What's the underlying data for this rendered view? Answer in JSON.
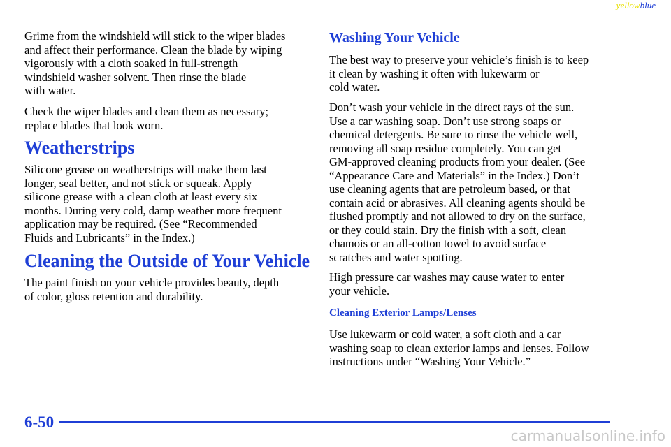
{
  "header": {
    "yellow": "yellow",
    "blue": "blue"
  },
  "left": [
    {
      "kind": "p",
      "lines": [
        "Grime from the windshield will stick to the wiper blades",
        "and affect their performance. Clean the blade by wiping",
        "vigorously with a cloth soaked in full-strength",
        "windshield washer solvent. Then rinse the blade",
        "with water."
      ]
    },
    {
      "kind": "p",
      "lines": [
        "Check the wiper blades and clean them as necessary;",
        "replace blades that look worn."
      ]
    },
    {
      "kind": "h1",
      "lines": [
        "Weatherstrips"
      ]
    },
    {
      "kind": "p",
      "lines": [
        "Silicone grease on weatherstrips will make them last",
        "longer, seal better, and not stick or squeak. Apply",
        "silicone grease with a clean cloth at least every six",
        "months. During very cold, damp weather more frequent",
        "application may be required. (See “Recommended",
        "Fluids and Lubricants” in the Index.)"
      ]
    },
    {
      "kind": "h1",
      "lines": [
        "Cleaning the Outside of Your Vehicle"
      ]
    },
    {
      "kind": "p",
      "lines": [
        "The paint finish on your vehicle provides beauty, depth",
        "of color, gloss retention and durability."
      ]
    }
  ],
  "right": [
    {
      "kind": "h2",
      "lines": [
        "Washing Your Vehicle"
      ]
    },
    {
      "kind": "p",
      "lines": [
        "The best way to preserve your vehicle’s finish is to keep",
        "it clean by washing it often with lukewarm or",
        "cold water."
      ]
    },
    {
      "kind": "p",
      "lines": [
        "Don’t wash your vehicle in the direct rays of the sun.",
        "Use a car washing soap. Don’t use strong soaps or",
        "chemical detergents. Be sure to rinse the vehicle well,",
        "removing all soap residue completely. You can get",
        "GM-approved cleaning products from your dealer. (See",
        "“Appearance Care and Materials” in the Index.) Don’t",
        "use cleaning agents that are petroleum based, or that",
        "contain acid or abrasives. All cleaning agents should be",
        "flushed promptly and not allowed to dry on the surface,",
        "or they could stain. Dry the finish with a soft, clean",
        "chamois or an all-cotton towel to avoid surface",
        "scratches and water spotting."
      ]
    },
    {
      "kind": "p",
      "lines": [
        "High pressure car washes may cause water to enter",
        "your vehicle."
      ]
    },
    {
      "kind": "h3",
      "lines": [
        "Cleaning Exterior Lamps/Lenses"
      ]
    },
    {
      "kind": "p",
      "lines": [
        "Use lukewarm or cold water, a soft cloth and a car",
        "washing soap to clean exterior lamps and lenses. Follow",
        "instructions under “Washing Your Vehicle.”"
      ]
    }
  ],
  "footer": {
    "page": "6-50",
    "watermark": "carmanualsonline.info"
  }
}
